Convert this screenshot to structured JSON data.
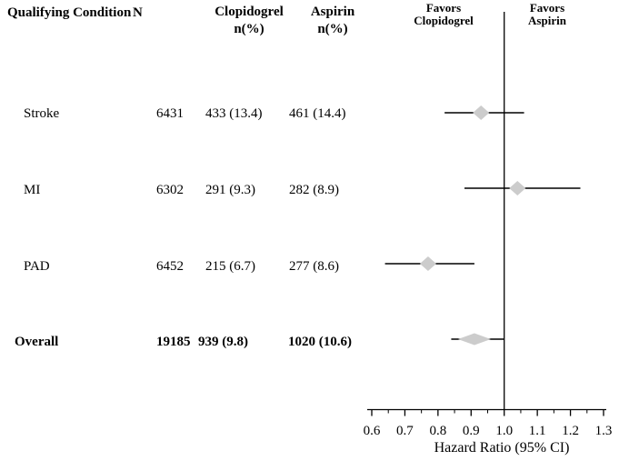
{
  "table": {
    "headers": {
      "condition": "Qualifying Condition",
      "n": "N",
      "clopidogrel_line1": "Clopidogrel",
      "clopidogrel_line2": "n(%)",
      "aspirin_line1": "Aspirin",
      "aspirin_line2": "n(%)"
    },
    "rows": [
      {
        "condition": "Stroke",
        "n": "6431",
        "clopidogrel": "433 (13.4)",
        "aspirin": "461 (14.4)",
        "bold": false
      },
      {
        "condition": "MI",
        "n": "6302",
        "clopidogrel": "291 (9.3)",
        "aspirin": "282 (8.9)",
        "bold": false
      },
      {
        "condition": "PAD",
        "n": "6452",
        "clopidogrel": "215 (6.7)",
        "aspirin": "277 (8.6)",
        "bold": false
      },
      {
        "condition": "Overall",
        "n": "19185",
        "clopidogrel": "939 (9.8)",
        "aspirin": "1020 (10.6)",
        "bold": true
      }
    ]
  },
  "plot": {
    "favors_left": {
      "line1": "Favors",
      "line2": "Clopidogrel"
    },
    "favors_right": {
      "line1": "Favors",
      "line2": "Aspirin"
    }
  },
  "chart_data": {
    "type": "forest",
    "title": "",
    "xlabel": "Hazard Ratio (95% CI)",
    "xlim": [
      0.6,
      1.3
    ],
    "x_ticks": [
      0.6,
      0.7,
      0.8,
      0.9,
      1.0,
      1.1,
      1.2,
      1.3
    ],
    "x_tick_labels": [
      "0.6",
      "0.7",
      "0.8",
      "0.9",
      "1.0",
      "1.1",
      "1.2",
      "1.3"
    ],
    "minor_ticks_between_majors": true,
    "reference_line": 1.0,
    "left_region_label": "Favors Clopidogrel",
    "right_region_label": "Favors Aspirin",
    "rows": [
      {
        "label": "Stroke",
        "n": 6431,
        "clopidogrel_n": 433,
        "clopidogrel_pct": 13.4,
        "aspirin_n": 461,
        "aspirin_pct": 14.4,
        "hr": 0.93,
        "ci_low": 0.82,
        "ci_high": 1.06,
        "summary": false
      },
      {
        "label": "MI",
        "n": 6302,
        "clopidogrel_n": 291,
        "clopidogrel_pct": 9.3,
        "aspirin_n": 282,
        "aspirin_pct": 8.9,
        "hr": 1.04,
        "ci_low": 0.88,
        "ci_high": 1.23,
        "summary": false
      },
      {
        "label": "PAD",
        "n": 6452,
        "clopidogrel_n": 215,
        "clopidogrel_pct": 6.7,
        "aspirin_n": 277,
        "aspirin_pct": 8.6,
        "hr": 0.77,
        "ci_low": 0.64,
        "ci_high": 0.91,
        "summary": false
      },
      {
        "label": "Overall",
        "n": 19185,
        "clopidogrel_n": 939,
        "clopidogrel_pct": 9.8,
        "aspirin_n": 1020,
        "aspirin_pct": 10.6,
        "hr": 0.91,
        "ci_low": 0.84,
        "ci_high": 1.0,
        "summary": true
      }
    ],
    "marker_color": "#cccccc",
    "line_color": "#000000",
    "legend": false,
    "grid": false
  }
}
